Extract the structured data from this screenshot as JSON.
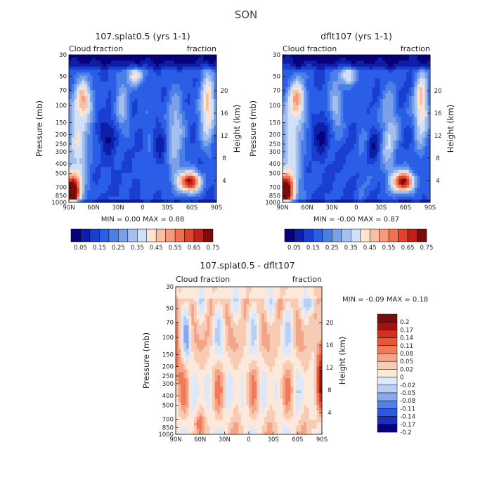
{
  "figure_title": "SON",
  "color_scales": {
    "seq": [
      "#08007a",
      "#0d1fa6",
      "#1a3fd0",
      "#2a5ee6",
      "#4a7fe8",
      "#7aa0ea",
      "#a5c0ee",
      "#cfe0f7",
      "#fde3d0",
      "#f8c0a2",
      "#f59a7a",
      "#f2704e",
      "#e2422c",
      "#c0221b",
      "#7a0c0c"
    ],
    "div": [
      "#08007a",
      "#1a2fc0",
      "#2e58e0",
      "#5480ea",
      "#8aa8ee",
      "#b8cff4",
      "#dde9fb",
      "#fde9dc",
      "#f8cbb4",
      "#f4a585",
      "#f17b59",
      "#ea5634",
      "#d1321f",
      "#a01414",
      "#7a0c0c"
    ]
  },
  "chart_data": [
    {
      "type": "heatmap",
      "title": "107.splat0.5 (yrs 1-1)",
      "left_label": "Cloud fraction",
      "right_label": "fraction",
      "xlabel": "",
      "ylabel": "Pressure (mb)",
      "ylabel_right": "Height (km)",
      "x_ticks": [
        "90N",
        "60N",
        "30N",
        "0",
        "30S",
        "60S",
        "90S"
      ],
      "y_ticks": [
        "30",
        "50",
        "70",
        "100",
        "150",
        "200",
        "250",
        "300",
        "400",
        "500",
        "700",
        "850",
        "1000"
      ],
      "right_ticks": [
        "20",
        "16",
        "12",
        "8",
        "4"
      ],
      "stats": "MIN =    0.00   MAX =    0.88",
      "colorbar_labels": [
        "0.05",
        "0.15",
        "0.25",
        "0.35",
        "0.45",
        "0.55",
        "0.65",
        "0.75"
      ],
      "colorbar_orientation": "horizontal",
      "min": 0.0,
      "max": 0.88
    },
    {
      "type": "heatmap",
      "title": "dflt107 (yrs 1-1)",
      "left_label": "Cloud fraction",
      "right_label": "fraction",
      "xlabel": "",
      "ylabel": "Pressure (mb)",
      "ylabel_right": "Height (km)",
      "x_ticks": [
        "90N",
        "60N",
        "30N",
        "0",
        "30S",
        "60S",
        "90S"
      ],
      "y_ticks": [
        "30",
        "50",
        "70",
        "100",
        "150",
        "200",
        "250",
        "300",
        "400",
        "500",
        "700",
        "850",
        "1000"
      ],
      "right_ticks": [
        "20",
        "16",
        "12",
        "8",
        "4"
      ],
      "stats": "MIN =  -0.00   MAX =    0.87",
      "colorbar_labels": [
        "0.05",
        "0.15",
        "0.25",
        "0.35",
        "0.45",
        "0.55",
        "0.65",
        "0.75"
      ],
      "colorbar_orientation": "horizontal",
      "min": -0.0,
      "max": 0.87
    },
    {
      "type": "heatmap",
      "title": "107.splat0.5 - dflt107",
      "left_label": "Cloud fraction",
      "right_label": "fraction",
      "xlabel": "",
      "ylabel": "Pressure (mb)",
      "ylabel_right": "Height (km)",
      "x_ticks": [
        "90N",
        "60N",
        "30N",
        "0",
        "30S",
        "60S",
        "90S"
      ],
      "y_ticks": [
        "30",
        "50",
        "70",
        "100",
        "150",
        "200",
        "250",
        "300",
        "400",
        "500",
        "700",
        "850",
        "1000"
      ],
      "right_ticks": [
        "20",
        "16",
        "12",
        "8",
        "4"
      ],
      "stats": "MIN =  -0.09   MAX =    0.18",
      "colorbar_labels": [
        "0.2",
        "0.17",
        "0.14",
        "0.11",
        "0.08",
        "0.05",
        "0.02",
        "0",
        "-0.02",
        "-0.05",
        "-0.08",
        "-0.11",
        "-0.14",
        "-0.17",
        "-0.2"
      ],
      "colorbar_orientation": "vertical",
      "min": -0.09,
      "max": 0.18
    }
  ]
}
